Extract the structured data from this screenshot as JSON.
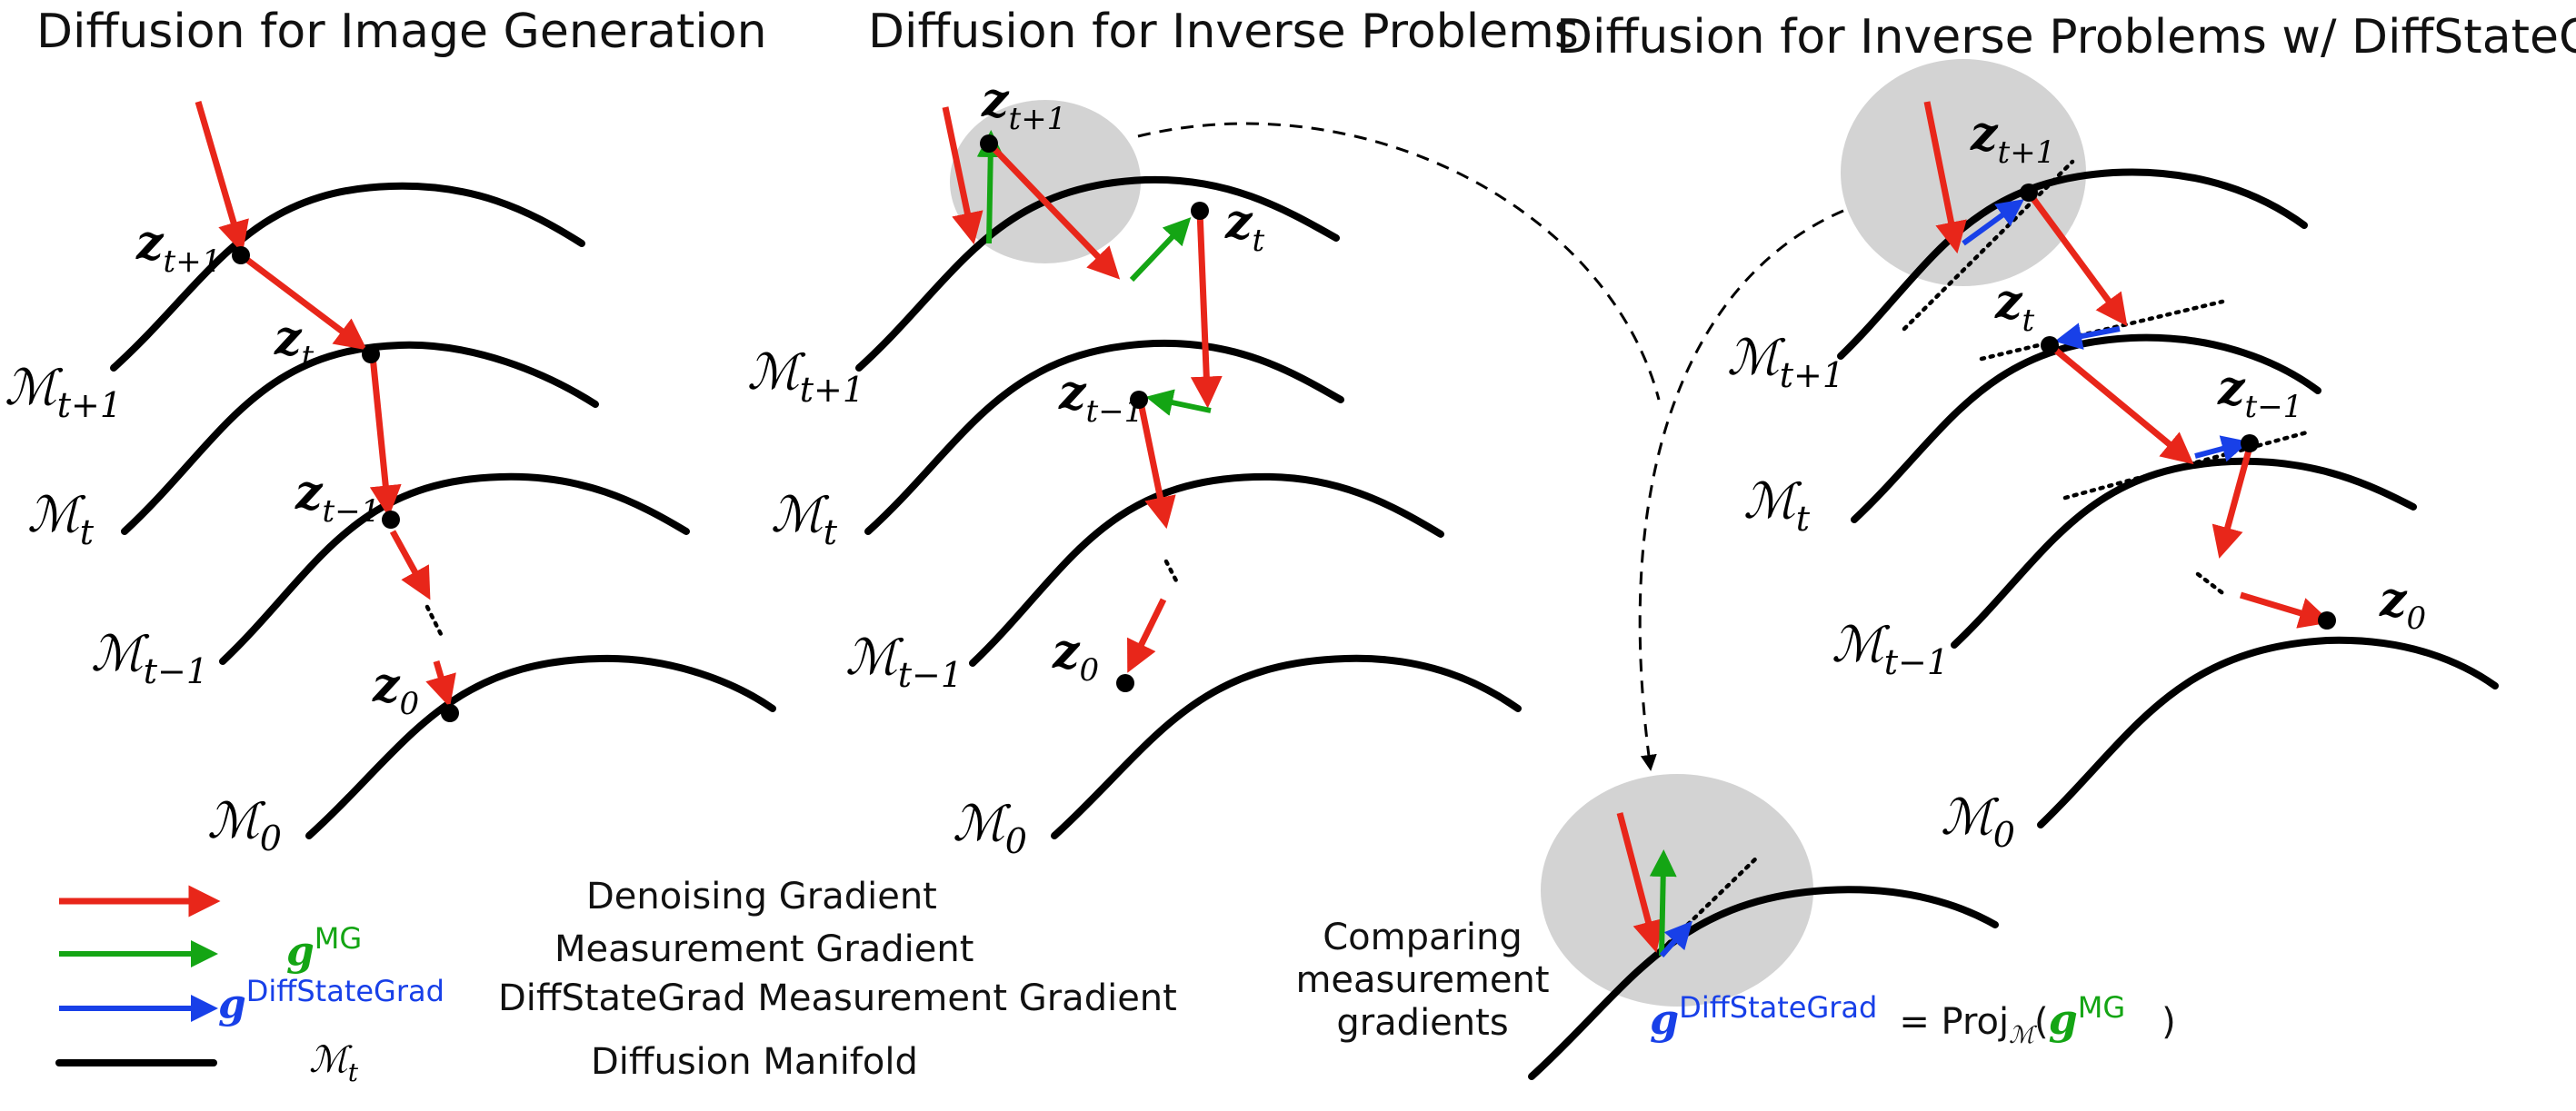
{
  "panels": {
    "left_title": "Diffusion for Image Generation",
    "middle_title": "Diffusion for Inverse Problems",
    "right_title": "Diffusion for Inverse Problems w/ DiffStateGrad"
  },
  "manifold_labels": {
    "symbol": "ℳ",
    "t_plus_1": "t+1",
    "t": "t",
    "t_minus_1": "t−1",
    "zero": "0"
  },
  "state_labels": {
    "symbol": "z",
    "t_plus_1": "t+1",
    "t": "t",
    "t_minus_1": "t−1",
    "zero": "0"
  },
  "legend": {
    "denoising": "Denoising Gradient",
    "mg_symbol": "g",
    "mg_sup": "MG",
    "measurement": "Measurement Gradient",
    "dsg_symbol": "g",
    "dsg_sup": "DiffStateGrad",
    "dsg_measurement": "DiffStateGrad Measurement Gradient",
    "manifold_symbol": "ℳ",
    "manifold_sub": "t",
    "manifold": "Diffusion Manifold"
  },
  "comparison": {
    "line1": "Comparing",
    "line2": "measurement",
    "line3": "gradients",
    "eq_lhs_symbol": "g",
    "eq_lhs_sup": "DiffStateGrad",
    "eq_equals": "= Proj",
    "eq_proj_sub": "ℳ",
    "eq_open": "(",
    "eq_rhs_symbol": "g",
    "eq_rhs_sup": "MG",
    "eq_close": ")"
  },
  "colors": {
    "denoising": "#e8261a",
    "measurement": "#14a514",
    "diffstategrad": "#1840e8",
    "manifold": "#000000",
    "highlight": "#d3d3d3"
  }
}
